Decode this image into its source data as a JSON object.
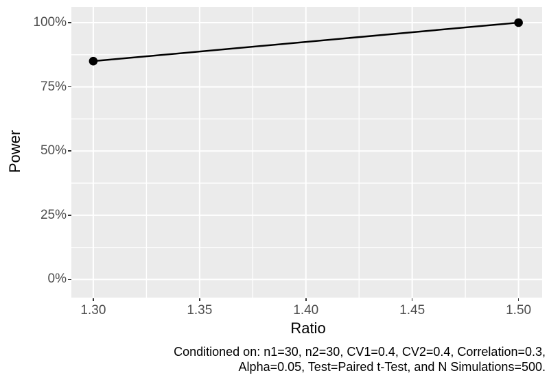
{
  "chart_data": {
    "type": "line",
    "title": "",
    "xlabel": "Ratio",
    "ylabel": "Power",
    "series": [
      {
        "name": "Power",
        "points": [
          {
            "x": 1.3,
            "y": 0.85
          },
          {
            "x": 1.5,
            "y": 1.0
          }
        ]
      }
    ],
    "x_ticks": [
      {
        "value": 1.3,
        "label": "1.30"
      },
      {
        "value": 1.35,
        "label": "1.35"
      },
      {
        "value": 1.4,
        "label": "1.40"
      },
      {
        "value": 1.45,
        "label": "1.45"
      },
      {
        "value": 1.5,
        "label": "1.50"
      }
    ],
    "y_ticks": [
      {
        "value": 0.0,
        "label": "0%"
      },
      {
        "value": 0.25,
        "label": "25%"
      },
      {
        "value": 0.5,
        "label": "50%"
      },
      {
        "value": 0.75,
        "label": "75%"
      },
      {
        "value": 1.0,
        "label": "100%"
      }
    ],
    "x_minor_ticks": [
      1.325,
      1.375,
      1.425,
      1.475
    ],
    "y_minor_ticks": [
      0.125,
      0.375,
      0.625,
      0.875
    ],
    "xlim": [
      1.2897,
      1.5111
    ],
    "ylim": [
      -0.0708,
      1.0614
    ],
    "grid": "major+minor",
    "legend_position": "none",
    "caption_lines": [
      "Conditioned on: n1=30, n2=30, CV1=0.4, CV2=0.4, Correlation=0.3,",
      "Alpha=0.05, Test=Paired t-Test, and N Simulations=500."
    ],
    "style": {
      "panel_background": "#EBEBEB",
      "grid_color": "#FFFFFF",
      "line_color": "#000000",
      "point_color": "#000000",
      "tick_label_color": "#4D4D4D",
      "axis_title_color": "#000000",
      "caption_color": "#000000",
      "tick_mark_color": "#333333"
    }
  }
}
